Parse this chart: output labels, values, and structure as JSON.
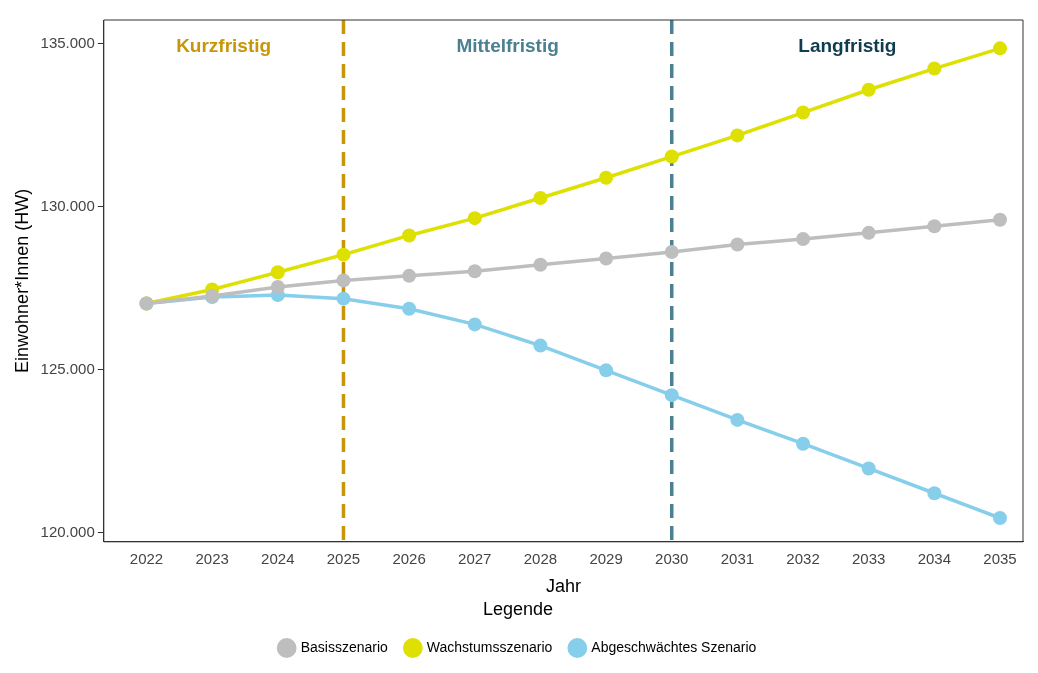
{
  "chart_data": {
    "type": "line",
    "xlabel": "Jahr",
    "ylabel": "Einwohner*Innen (HW)",
    "legend_title": "Legende",
    "x": [
      2022,
      2023,
      2024,
      2025,
      2026,
      2027,
      2028,
      2029,
      2030,
      2031,
      2032,
      2033,
      2034,
      2035
    ],
    "xlim": [
      2021.35,
      2035.35
    ],
    "xticks": [
      2022,
      2023,
      2024,
      2025,
      2026,
      2027,
      2028,
      2029,
      2030,
      2031,
      2032,
      2033,
      2034,
      2035
    ],
    "ylim": [
      119720,
      135730
    ],
    "yticks": [
      {
        "value": 120000,
        "label": "120.000"
      },
      {
        "value": 125000,
        "label": "125.000"
      },
      {
        "value": 130000,
        "label": "130.000"
      },
      {
        "value": 135000,
        "label": "135.000"
      }
    ],
    "series": [
      {
        "name": "Basisszenario",
        "color": "#bebebe",
        "values": [
          127030,
          127260,
          127540,
          127740,
          127880,
          128020,
          128220,
          128410,
          128610,
          128840,
          129010,
          129200,
          129400,
          129600
        ]
      },
      {
        "name": "Wachstumsszenario",
        "color": "#dde000",
        "values": [
          127030,
          127460,
          127990,
          128530,
          129120,
          129650,
          130270,
          130890,
          131540,
          132190,
          132890,
          133590,
          134240,
          134860
        ]
      },
      {
        "name": "Abgeschwächtes Szenario",
        "color": "#87ceeb",
        "values": [
          127030,
          127230,
          127290,
          127180,
          126870,
          126390,
          125740,
          124980,
          124220,
          123460,
          122730,
          121970,
          121210,
          120450
        ]
      }
    ],
    "ref_lines": [
      {
        "axis": "x",
        "value": 2025,
        "color": "#c8960a",
        "line_style": "dashed"
      },
      {
        "axis": "x",
        "value": 2030,
        "color": "#4a8090",
        "line_style": "dashed"
      }
    ],
    "annotations": [
      "Kurzfristig",
      "Mittelfristig",
      "Langfristig"
    ],
    "grid": false,
    "legend": "bottom",
    "marker": "circle",
    "line_style": "solid"
  }
}
